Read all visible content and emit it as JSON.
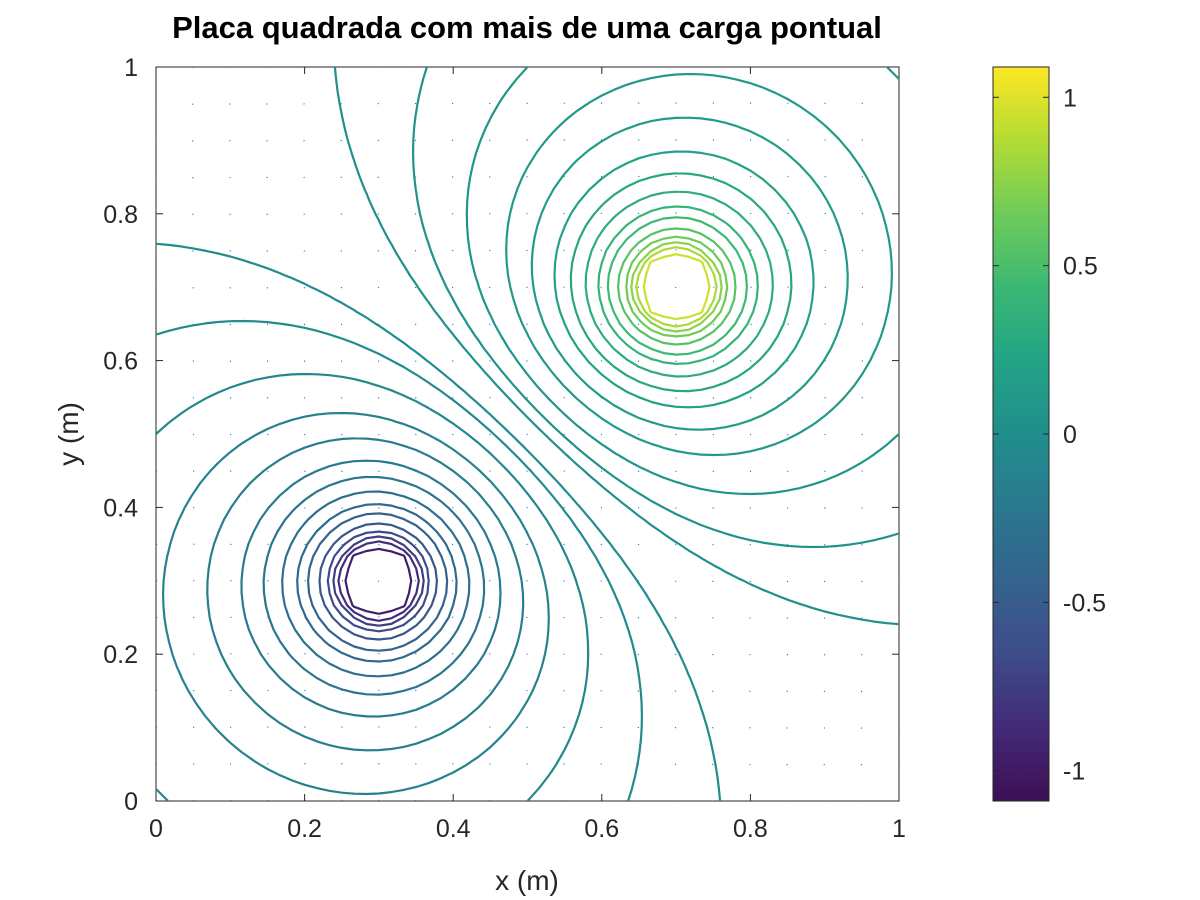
{
  "chart_data": {
    "type": "contour",
    "title": "Placa quadrada com mais de uma carga pontual",
    "xlabel": "x (m)",
    "ylabel": "y (m)",
    "xlim": [
      0,
      1
    ],
    "ylim": [
      0,
      1
    ],
    "xticks": [
      "0",
      "0.2",
      "0.4",
      "0.6",
      "0.8",
      "1"
    ],
    "yticks": [
      "0",
      "0.2",
      "0.4",
      "0.6",
      "0.8",
      "1"
    ],
    "xtick_values": [
      0,
      0.2,
      0.4,
      0.6,
      0.8,
      1
    ],
    "ytick_values": [
      0,
      0.2,
      0.4,
      0.6,
      0.8,
      1
    ],
    "grid_step": 0.05,
    "charges": [
      {
        "x": 0.3,
        "y": 0.3,
        "sign": -1
      },
      {
        "x": 0.7,
        "y": 0.7,
        "sign": 1
      }
    ],
    "contour_levels": [
      -0.95,
      -0.85,
      -0.75,
      -0.65,
      -0.55,
      -0.45,
      -0.38,
      -0.31,
      -0.25,
      -0.2,
      -0.15,
      -0.11,
      -0.07,
      -0.04,
      -0.02,
      0.02,
      0.04,
      0.07,
      0.11,
      0.15,
      0.2,
      0.25,
      0.31,
      0.38,
      0.45,
      0.55,
      0.65,
      0.75,
      0.85,
      0.95
    ],
    "quiver": {
      "color": "#0072bd",
      "on": true
    },
    "colorbar": {
      "colormap": "parula",
      "range": [
        -1.09,
        1.09
      ],
      "ticks": [
        "-1",
        "-0.5",
        "0",
        "0.5",
        "1"
      ],
      "tick_values": [
        -1,
        -0.5,
        0,
        0.5,
        1
      ],
      "placement": "right"
    },
    "grid": false
  }
}
